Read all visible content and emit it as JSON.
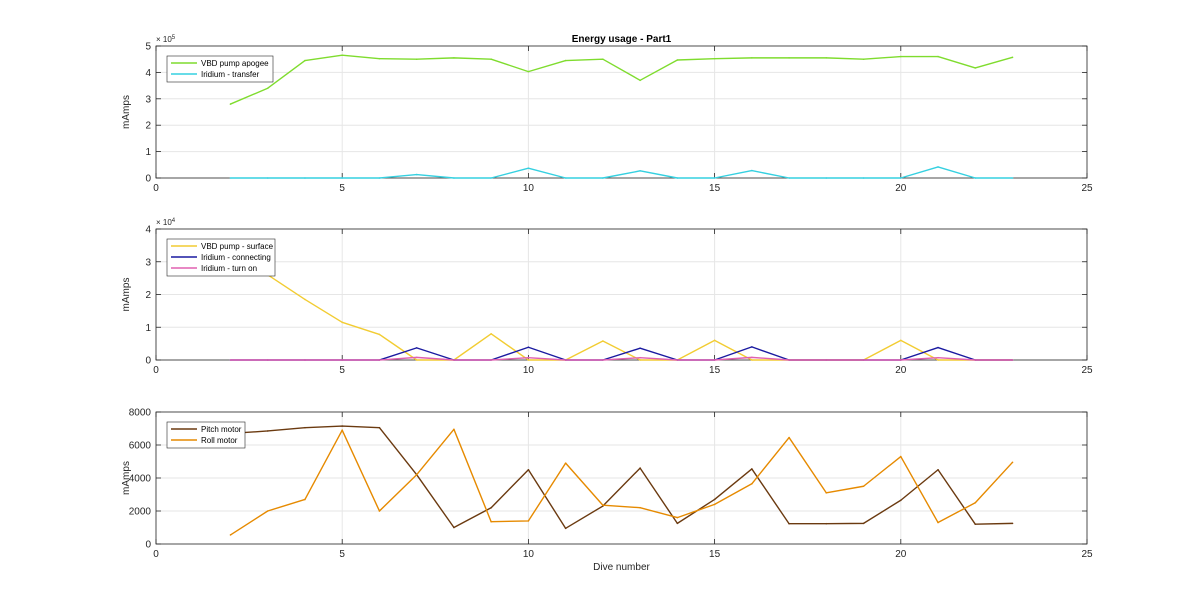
{
  "colors": {
    "grid": "#e6e6e6",
    "axis": "#262626"
  },
  "chart_data": [
    {
      "type": "line",
      "title": "Energy usage - Part1",
      "xlabel": "",
      "ylabel": "mAmps",
      "xlim": [
        0,
        25
      ],
      "ylim": [
        0,
        5
      ],
      "xticks": [
        "0",
        "5",
        "10",
        "15",
        "20",
        "25"
      ],
      "yticks": [
        "0",
        "1",
        "2",
        "3",
        "4",
        "5"
      ],
      "y_exponent": "× 10",
      "y_exponent_power": "5",
      "grid": true,
      "legend": "top-left",
      "series": [
        {
          "name": "VBD pump apogee",
          "color": "#7fdc2e",
          "x": [
            2,
            3,
            4,
            5,
            6,
            7,
            8,
            9,
            10,
            11,
            12,
            13,
            14,
            15,
            16,
            17,
            18,
            19,
            20,
            21,
            22,
            23
          ],
          "values": [
            2.8,
            3.4,
            4.45,
            4.65,
            4.52,
            4.5,
            4.55,
            4.5,
            4.03,
            4.45,
            4.5,
            3.7,
            4.47,
            4.52,
            4.55,
            4.55,
            4.55,
            4.5,
            4.6,
            4.6,
            4.17,
            4.57
          ]
        },
        {
          "name": "Iridium - transfer",
          "color": "#35d0e0",
          "x": [
            2,
            3,
            4,
            5,
            6,
            7,
            8,
            9,
            10,
            11,
            12,
            13,
            14,
            15,
            16,
            17,
            18,
            19,
            20,
            21,
            22,
            23
          ],
          "values": [
            0,
            0,
            0,
            0,
            0,
            0.13,
            0,
            0,
            0.37,
            0,
            0,
            0.27,
            0,
            0,
            0.28,
            0,
            0,
            0,
            0,
            0.42,
            0,
            0
          ]
        }
      ]
    },
    {
      "type": "line",
      "xlabel": "",
      "ylabel": "mAmps",
      "xlim": [
        0,
        25
      ],
      "ylim": [
        0,
        4
      ],
      "xticks": [
        "0",
        "5",
        "10",
        "15",
        "20",
        "25"
      ],
      "yticks": [
        "0",
        "1",
        "2",
        "3",
        "4"
      ],
      "y_exponent": "× 10",
      "y_exponent_power": "4",
      "grid": true,
      "legend": "top-left",
      "series": [
        {
          "name": "VBD pump - surface",
          "color": "#f2cc32",
          "x": [
            2,
            3,
            4,
            5,
            6,
            7,
            8,
            9,
            10,
            11,
            12,
            13,
            14,
            15,
            16,
            17,
            18,
            19,
            20,
            21,
            22,
            23
          ],
          "values": [
            3.2,
            2.6,
            1.85,
            1.15,
            0.78,
            0,
            0,
            0.8,
            0,
            0,
            0.58,
            0,
            0,
            0.6,
            0,
            0,
            0,
            0,
            0.6,
            0,
            0,
            0
          ]
        },
        {
          "name": "Iridium - connecting",
          "color": "#1a1aa0",
          "x": [
            2,
            3,
            4,
            5,
            6,
            7,
            8,
            9,
            10,
            11,
            12,
            13,
            14,
            15,
            16,
            17,
            18,
            19,
            20,
            21,
            22,
            23
          ],
          "values": [
            0,
            0,
            0,
            0,
            0,
            0.37,
            0,
            0,
            0.39,
            0,
            0,
            0.36,
            0,
            0,
            0.4,
            0,
            0,
            0,
            0,
            0.38,
            0,
            0
          ]
        },
        {
          "name": "Iridium - turn on",
          "color": "#e060b0",
          "x": [
            2,
            3,
            4,
            5,
            6,
            7,
            8,
            9,
            10,
            11,
            12,
            13,
            14,
            15,
            16,
            17,
            18,
            19,
            20,
            21,
            22,
            23
          ],
          "values": [
            0,
            0,
            0,
            0,
            0,
            0.08,
            0,
            0,
            0.07,
            0,
            0,
            0.07,
            0,
            0,
            0.08,
            0,
            0,
            0,
            0,
            0.07,
            0,
            0
          ]
        }
      ]
    },
    {
      "type": "line",
      "xlabel": "Dive number",
      "ylabel": "mAmps",
      "xlim": [
        0,
        25
      ],
      "ylim": [
        0,
        8000
      ],
      "xticks": [
        "0",
        "5",
        "10",
        "15",
        "20",
        "25"
      ],
      "yticks": [
        "0",
        "2000",
        "4000",
        "6000",
        "8000"
      ],
      "grid": true,
      "legend": "top-left",
      "series": [
        {
          "name": "Pitch motor",
          "color": "#6b3a10",
          "x": [
            2,
            3,
            4,
            5,
            6,
            7,
            8,
            9,
            10,
            11,
            12,
            13,
            14,
            15,
            16,
            17,
            18,
            19,
            20,
            21,
            22,
            23
          ],
          "values": [
            6700,
            6850,
            7050,
            7150,
            7050,
            4200,
            1000,
            2200,
            4500,
            950,
            2300,
            4600,
            1250,
            2700,
            4550,
            1230,
            1230,
            1250,
            2650,
            4500,
            1200,
            1250
          ]
        },
        {
          "name": "Roll motor",
          "color": "#e68a00",
          "x": [
            2,
            3,
            4,
            5,
            6,
            7,
            8,
            9,
            10,
            11,
            12,
            13,
            14,
            15,
            16,
            17,
            18,
            19,
            20,
            21,
            22,
            23
          ],
          "values": [
            550,
            2000,
            2700,
            6900,
            2000,
            4200,
            6950,
            1350,
            1400,
            4900,
            2350,
            2200,
            1600,
            2400,
            3650,
            6450,
            3100,
            3500,
            5300,
            1300,
            2500,
            4950
          ]
        }
      ]
    }
  ]
}
